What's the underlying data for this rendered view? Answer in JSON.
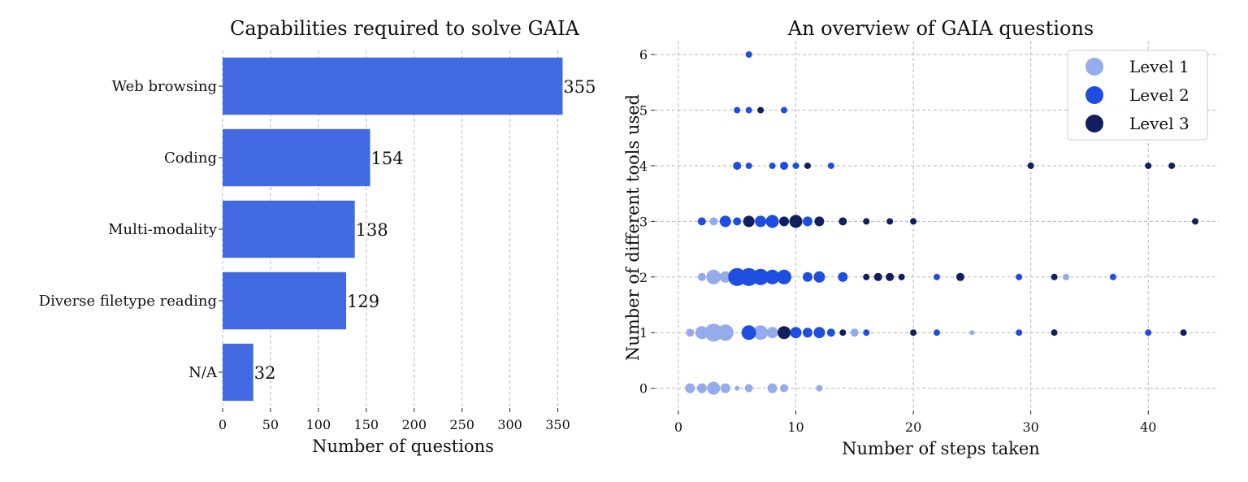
{
  "chart_data": [
    {
      "type": "bar",
      "orientation": "horizontal",
      "title": "Capabilities required to solve GAIA",
      "xlabel": "Number of questions",
      "ylabel": "",
      "xlim": [
        0,
        375
      ],
      "xticks": [
        0,
        50,
        100,
        150,
        200,
        250,
        300,
        350
      ],
      "grid": "x",
      "color": "#4169E1",
      "categories": [
        "Web browsing",
        "Coding",
        "Multi-modality",
        "Diverse filetype reading",
        "N/A"
      ],
      "values": [
        355,
        154,
        138,
        129,
        32
      ],
      "data_labels": [
        "355",
        "154",
        "138",
        "129",
        "32"
      ]
    },
    {
      "type": "scatter",
      "title": "An overview of GAIA questions",
      "xlabel": "Number of steps taken",
      "ylabel": "Number of different tools used",
      "xlim": [
        -2,
        46
      ],
      "ylim": [
        -0.4,
        6.25
      ],
      "xticks": [
        0,
        10,
        20,
        30,
        40
      ],
      "yticks": [
        0,
        1,
        2,
        3,
        4,
        5,
        6
      ],
      "grid": "both",
      "legend_position": "top-right",
      "series": [
        {
          "name": "Level 1",
          "color": "#94ABEC",
          "points": [
            [
              1,
              0,
              6
            ],
            [
              2,
              0,
              6
            ],
            [
              3,
              0,
              8
            ],
            [
              4,
              0,
              6
            ],
            [
              5,
              0,
              3
            ],
            [
              6,
              0,
              5
            ],
            [
              8,
              0,
              6
            ],
            [
              9,
              0,
              5
            ],
            [
              12,
              0,
              4
            ],
            [
              1,
              1,
              5
            ],
            [
              2,
              1,
              8
            ],
            [
              3,
              1,
              11
            ],
            [
              4,
              1,
              10
            ],
            [
              7,
              1,
              9
            ],
            [
              8,
              1,
              7
            ],
            [
              15,
              1,
              5
            ],
            [
              25,
              1,
              3
            ],
            [
              2,
              2,
              5
            ],
            [
              3,
              2,
              9
            ],
            [
              4,
              2,
              7
            ],
            [
              33,
              2,
              4
            ],
            [
              3,
              3,
              5
            ]
          ]
        },
        {
          "name": "Level 2",
          "color": "#1F4DE0",
          "points": [
            [
              6,
              6,
              4
            ],
            [
              5,
              5,
              4
            ],
            [
              6,
              5,
              4
            ],
            [
              9,
              5,
              4
            ],
            [
              5,
              4,
              5
            ],
            [
              6,
              4,
              4
            ],
            [
              8,
              4,
              4
            ],
            [
              9,
              4,
              5
            ],
            [
              10,
              4,
              4
            ],
            [
              13,
              4,
              4
            ],
            [
              2,
              3,
              5
            ],
            [
              4,
              3,
              7
            ],
            [
              5,
              3,
              5
            ],
            [
              7,
              3,
              7
            ],
            [
              8,
              3,
              8
            ],
            [
              11,
              3,
              6
            ],
            [
              5,
              2,
              11
            ],
            [
              6,
              2,
              11
            ],
            [
              7,
              2,
              10
            ],
            [
              8,
              2,
              9
            ],
            [
              9,
              2,
              9
            ],
            [
              11,
              2,
              6
            ],
            [
              12,
              2,
              7
            ],
            [
              14,
              2,
              6
            ],
            [
              22,
              2,
              4
            ],
            [
              29,
              2,
              4
            ],
            [
              37,
              2,
              4
            ],
            [
              6,
              1,
              9
            ],
            [
              10,
              1,
              7
            ],
            [
              11,
              1,
              6
            ],
            [
              12,
              1,
              7
            ],
            [
              13,
              1,
              5
            ],
            [
              16,
              1,
              4
            ],
            [
              22,
              1,
              4
            ],
            [
              29,
              1,
              4
            ],
            [
              40,
              1,
              4
            ]
          ]
        },
        {
          "name": "Level 3",
          "color": "#0F1F5F",
          "points": [
            [
              7,
              5,
              4
            ],
            [
              11,
              4,
              4
            ],
            [
              30,
              4,
              4
            ],
            [
              40,
              4,
              4
            ],
            [
              42,
              4,
              4
            ],
            [
              6,
              3,
              7
            ],
            [
              9,
              3,
              6
            ],
            [
              10,
              3,
              8
            ],
            [
              12,
              3,
              6
            ],
            [
              14,
              3,
              5
            ],
            [
              16,
              3,
              4
            ],
            [
              18,
              3,
              4
            ],
            [
              20,
              3,
              4
            ],
            [
              44,
              3,
              4
            ],
            [
              16,
              2,
              4
            ],
            [
              17,
              2,
              5
            ],
            [
              18,
              2,
              5
            ],
            [
              19,
              2,
              4
            ],
            [
              24,
              2,
              5
            ],
            [
              32,
              2,
              4
            ],
            [
              9,
              1,
              8
            ],
            [
              14,
              1,
              4
            ],
            [
              20,
              1,
              4
            ],
            [
              32,
              1,
              4
            ],
            [
              43,
              1,
              4
            ]
          ]
        }
      ]
    }
  ]
}
